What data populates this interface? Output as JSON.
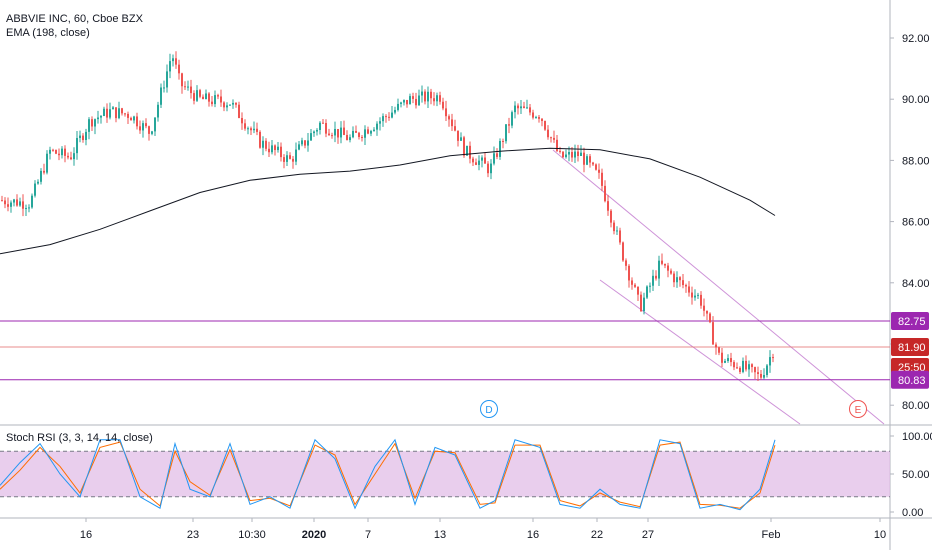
{
  "legend": {
    "symbol_line": "ABBVIE INC, 60, Cboe BZX",
    "ema_line": "EMA (198, close)",
    "osc_line": "Stoch RSI (3, 3, 14, 14, close)"
  },
  "colors": {
    "up": "#26a69a",
    "down": "#ef5350",
    "ema": "#131722",
    "k_line": "#2196f3",
    "d_line": "#ff6d00",
    "band_fill": "#e1bee7",
    "hline_purple": "#9c27b0",
    "hline_red": "#e57373",
    "channel": "#ce93d8",
    "current_badge": "#c62828"
  },
  "badges": {
    "upper_level": "82.75",
    "last_price": "81.90",
    "countdown": "25:50",
    "lower_level": "80.83"
  },
  "events": [
    {
      "letter": "D",
      "color": "#2196f3"
    },
    {
      "letter": "E",
      "color": "#ef5350"
    }
  ],
  "chart_data": [
    {
      "type": "line",
      "title": "ABBVIE INC, 60, Cboe BZX",
      "x_tick_labels": [
        "16",
        "23",
        "10:30",
        "2020",
        "7",
        "13",
        "16",
        "22",
        "27",
        "Feb",
        "10"
      ],
      "y_tick_labels": [
        "92.00",
        "90.00",
        "88.00",
        "86.00",
        "84.00",
        "82.00",
        "80.00"
      ],
      "ylim": [
        79.5,
        93.2
      ],
      "series": [
        {
          "name": "EMA (198, close)",
          "x": [
            0,
            50,
            100,
            150,
            200,
            250,
            300,
            350,
            400,
            450,
            500,
            550,
            600,
            650,
            700,
            750,
            775
          ],
          "values": [
            84.95,
            85.25,
            85.75,
            86.35,
            86.95,
            87.35,
            87.55,
            87.65,
            87.85,
            88.15,
            88.3,
            88.4,
            88.35,
            88.05,
            87.45,
            86.7,
            86.2
          ]
        },
        {
          "name": "price",
          "x": [
            0,
            30,
            50,
            70,
            90,
            110,
            130,
            150,
            172,
            180,
            200,
            230,
            260,
            290,
            320,
            350,
            380,
            410,
            440,
            465,
            490,
            515,
            540,
            560,
            580,
            600,
            620,
            640,
            660,
            680,
            700,
            720,
            740,
            760,
            775
          ],
          "values": [
            86.7,
            86.6,
            88.3,
            88.1,
            89.3,
            89.6,
            89.5,
            88.9,
            91.5,
            90.5,
            90.0,
            89.9,
            88.6,
            88.0,
            89.2,
            88.7,
            89.3,
            90.0,
            90.1,
            88.3,
            87.7,
            89.7,
            89.5,
            88.1,
            88.2,
            87.4,
            85.2,
            83.2,
            84.6,
            84.0,
            83.5,
            81.5,
            81.3,
            80.9,
            81.9
          ]
        }
      ],
      "horizontal_levels": [
        82.75,
        81.9,
        80.83
      ]
    },
    {
      "type": "line",
      "title": "Stoch RSI (3, 3, 14, 14, close)",
      "y_tick_labels": [
        "100.00",
        "50.00",
        "0.00"
      ],
      "ylim": [
        -3,
        105
      ],
      "bands": [
        20,
        80
      ],
      "series": [
        {
          "name": "K",
          "x": [
            0,
            20,
            40,
            60,
            80,
            100,
            120,
            140,
            160,
            175,
            190,
            210,
            230,
            250,
            270,
            290,
            315,
            335,
            355,
            375,
            395,
            415,
            435,
            455,
            480,
            495,
            515,
            540,
            560,
            580,
            600,
            620,
            640,
            660,
            680,
            700,
            720,
            740,
            760,
            775
          ],
          "values": [
            35,
            65,
            90,
            50,
            20,
            95,
            95,
            20,
            5,
            90,
            30,
            20,
            90,
            10,
            20,
            5,
            95,
            70,
            5,
            60,
            95,
            10,
            85,
            75,
            5,
            15,
            95,
            85,
            10,
            5,
            30,
            10,
            5,
            95,
            90,
            5,
            10,
            3,
            30,
            95
          ]
        },
        {
          "name": "D",
          "x": [
            0,
            20,
            40,
            60,
            80,
            100,
            120,
            140,
            160,
            175,
            190,
            210,
            230,
            250,
            270,
            290,
            315,
            335,
            355,
            375,
            395,
            415,
            435,
            455,
            480,
            495,
            515,
            540,
            560,
            580,
            600,
            620,
            640,
            660,
            680,
            700,
            720,
            740,
            760,
            775
          ],
          "values": [
            30,
            55,
            85,
            60,
            25,
            85,
            92,
            30,
            8,
            80,
            40,
            22,
            82,
            15,
            18,
            8,
            88,
            75,
            10,
            50,
            90,
            18,
            80,
            78,
            10,
            12,
            88,
            88,
            15,
            8,
            25,
            13,
            7,
            88,
            92,
            10,
            9,
            5,
            25,
            88
          ]
        }
      ]
    }
  ]
}
